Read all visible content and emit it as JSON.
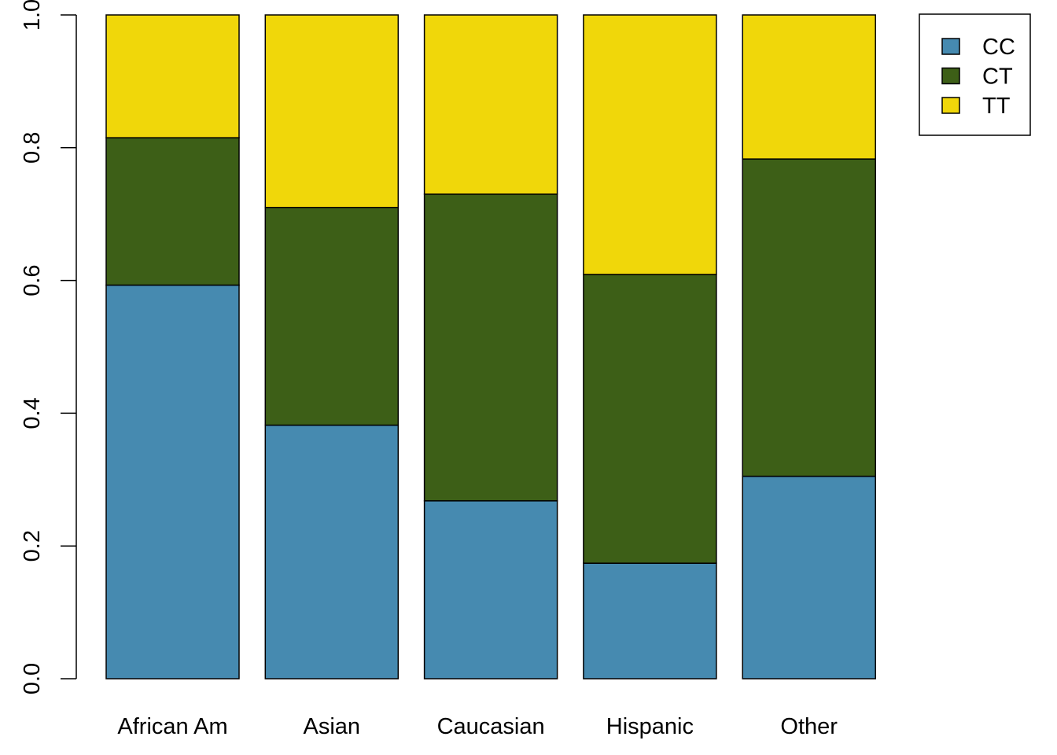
{
  "chart_data": {
    "type": "bar",
    "stacked": true,
    "categories": [
      "African Am",
      "Asian",
      "Caucasian",
      "Hispanic",
      "Other"
    ],
    "series": [
      {
        "name": "CC",
        "color": "#468AB0",
        "values": [
          0.593,
          0.382,
          0.268,
          0.174,
          0.305
        ]
      },
      {
        "name": "CT",
        "color": "#3D5F17",
        "values": [
          0.222,
          0.328,
          0.462,
          0.435,
          0.478
        ]
      },
      {
        "name": "TT",
        "color": "#F0D70A",
        "values": [
          0.185,
          0.29,
          0.27,
          0.391,
          0.217
        ]
      }
    ],
    "ylim": [
      0,
      1
    ],
    "yticks": [
      "0.0",
      "0.2",
      "0.4",
      "0.6",
      "0.8",
      "1.0"
    ],
    "grid": false,
    "legend_position": "top-right"
  }
}
